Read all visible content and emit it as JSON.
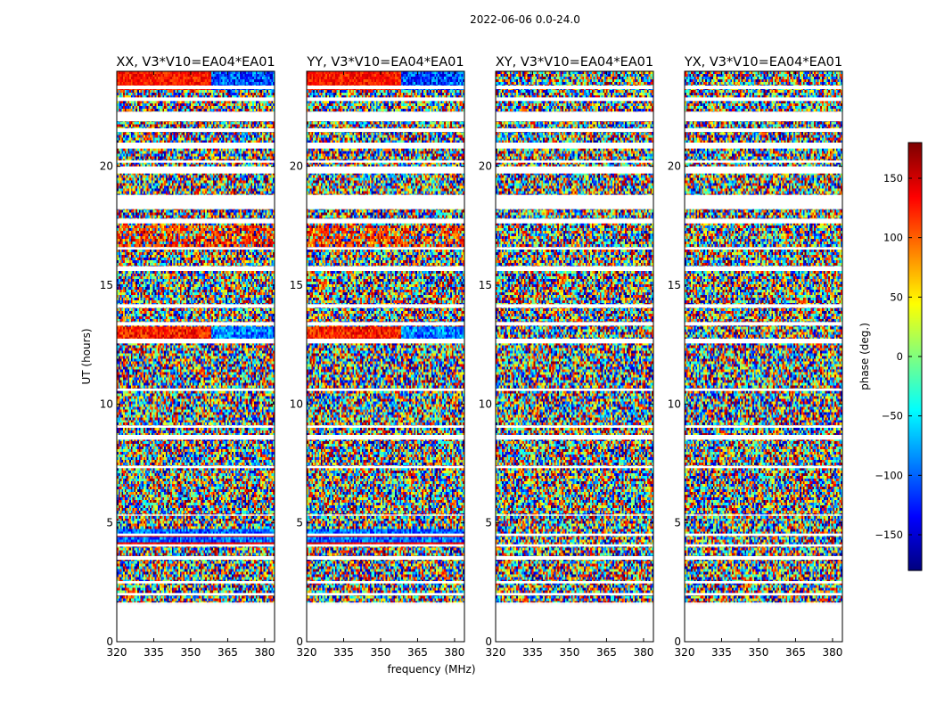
{
  "figure_title": "2022-06-06 0.0-24.0",
  "chart_data": {
    "type": "heatmap",
    "title": "2022-06-06 0.0-24.0",
    "xlabel": "frequency (MHz)",
    "ylabel": "UT (hours)",
    "xlim": [
      320,
      384
    ],
    "ylim": [
      0,
      24
    ],
    "x_ticks": [
      320,
      335,
      350,
      365,
      380
    ],
    "y_ticks": [
      0,
      5,
      10,
      15,
      20
    ],
    "data_time_range_hours": [
      1.6,
      24.0
    ],
    "panels": [
      {
        "title": "XX, V3*V10=EA04*EA01",
        "polarization": "XX"
      },
      {
        "title": "YY, V3*V10=EA04*EA01",
        "polarization": "YY"
      },
      {
        "title": "XY, V3*V10=EA04*EA01",
        "polarization": "XY"
      },
      {
        "title": "YX, V3*V10=EA04*EA01",
        "polarization": "YX"
      }
    ],
    "flagged_time_bands_hours": [
      [
        1.6,
        1.65
      ],
      [
        1.95,
        2.05
      ],
      [
        2.45,
        2.55
      ],
      [
        3.45,
        3.6
      ],
      [
        4.0,
        4.1
      ],
      [
        4.45,
        4.55
      ],
      [
        5.3,
        5.35
      ],
      [
        7.3,
        7.4
      ],
      [
        8.5,
        8.7
      ],
      [
        9.0,
        9.1
      ],
      [
        10.55,
        10.65
      ],
      [
        12.55,
        12.75
      ],
      [
        13.3,
        13.45
      ],
      [
        14.05,
        14.2
      ],
      [
        15.6,
        15.8
      ],
      [
        16.5,
        16.6
      ],
      [
        17.6,
        17.8
      ],
      [
        18.2,
        18.8
      ],
      [
        19.7,
        20.0
      ],
      [
        20.15,
        20.25
      ],
      [
        20.75,
        21.0
      ],
      [
        21.45,
        21.6
      ],
      [
        21.9,
        22.3
      ],
      [
        22.75,
        22.9
      ],
      [
        23.25,
        23.4
      ]
    ],
    "colorbar": {
      "label": "phase (deg.)",
      "range": [
        -180,
        180
      ],
      "ticks": [
        -150,
        -100,
        -50,
        0,
        50,
        100,
        150
      ],
      "colormap": "jet"
    }
  }
}
